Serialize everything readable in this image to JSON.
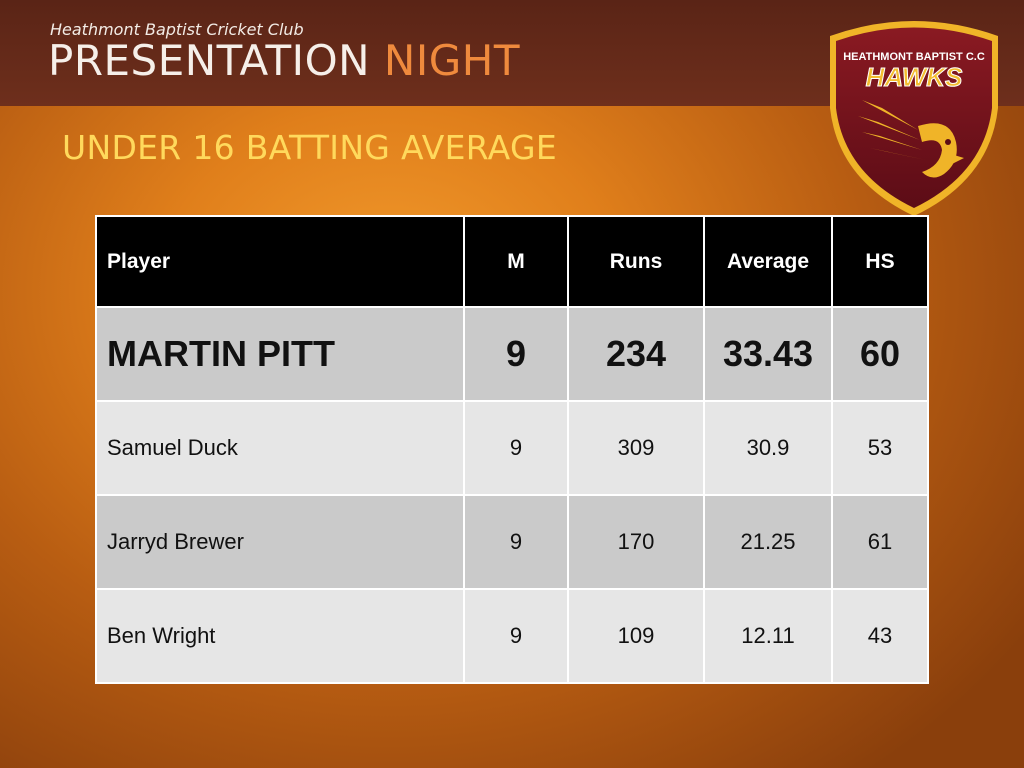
{
  "header": {
    "club_name": "Heathmont Baptist Cricket Club",
    "title_main": "PRESENTATION",
    "title_accent": "NIGHT"
  },
  "subtitle": "UNDER 16 BATTING AVERAGE",
  "logo": {
    "club_text": "HEATHMONT BAPTIST C.C",
    "team_text": "HAWKS",
    "icon": "hawk-shield-logo"
  },
  "table": {
    "columns": [
      "Player",
      "M",
      "Runs",
      "Average",
      "HS"
    ],
    "rows": [
      [
        "MARTIN PITT",
        "9",
        "234",
        "33.43",
        "60"
      ],
      [
        "Samuel Duck",
        "9",
        "309",
        "30.9",
        "53"
      ],
      [
        "Jarryd Brewer",
        "9",
        "170",
        "21.25",
        "61"
      ],
      [
        "Ben Wright",
        "9",
        "109",
        "12.11",
        "43"
      ]
    ]
  },
  "colors": {
    "header_bg": "#5a2416",
    "accent_orange": "#ef8a3d",
    "subtitle_yellow": "#ffd95c",
    "table_header_bg": "#000000",
    "row_dark": "#cacaca",
    "row_light": "#e6e6e6"
  }
}
